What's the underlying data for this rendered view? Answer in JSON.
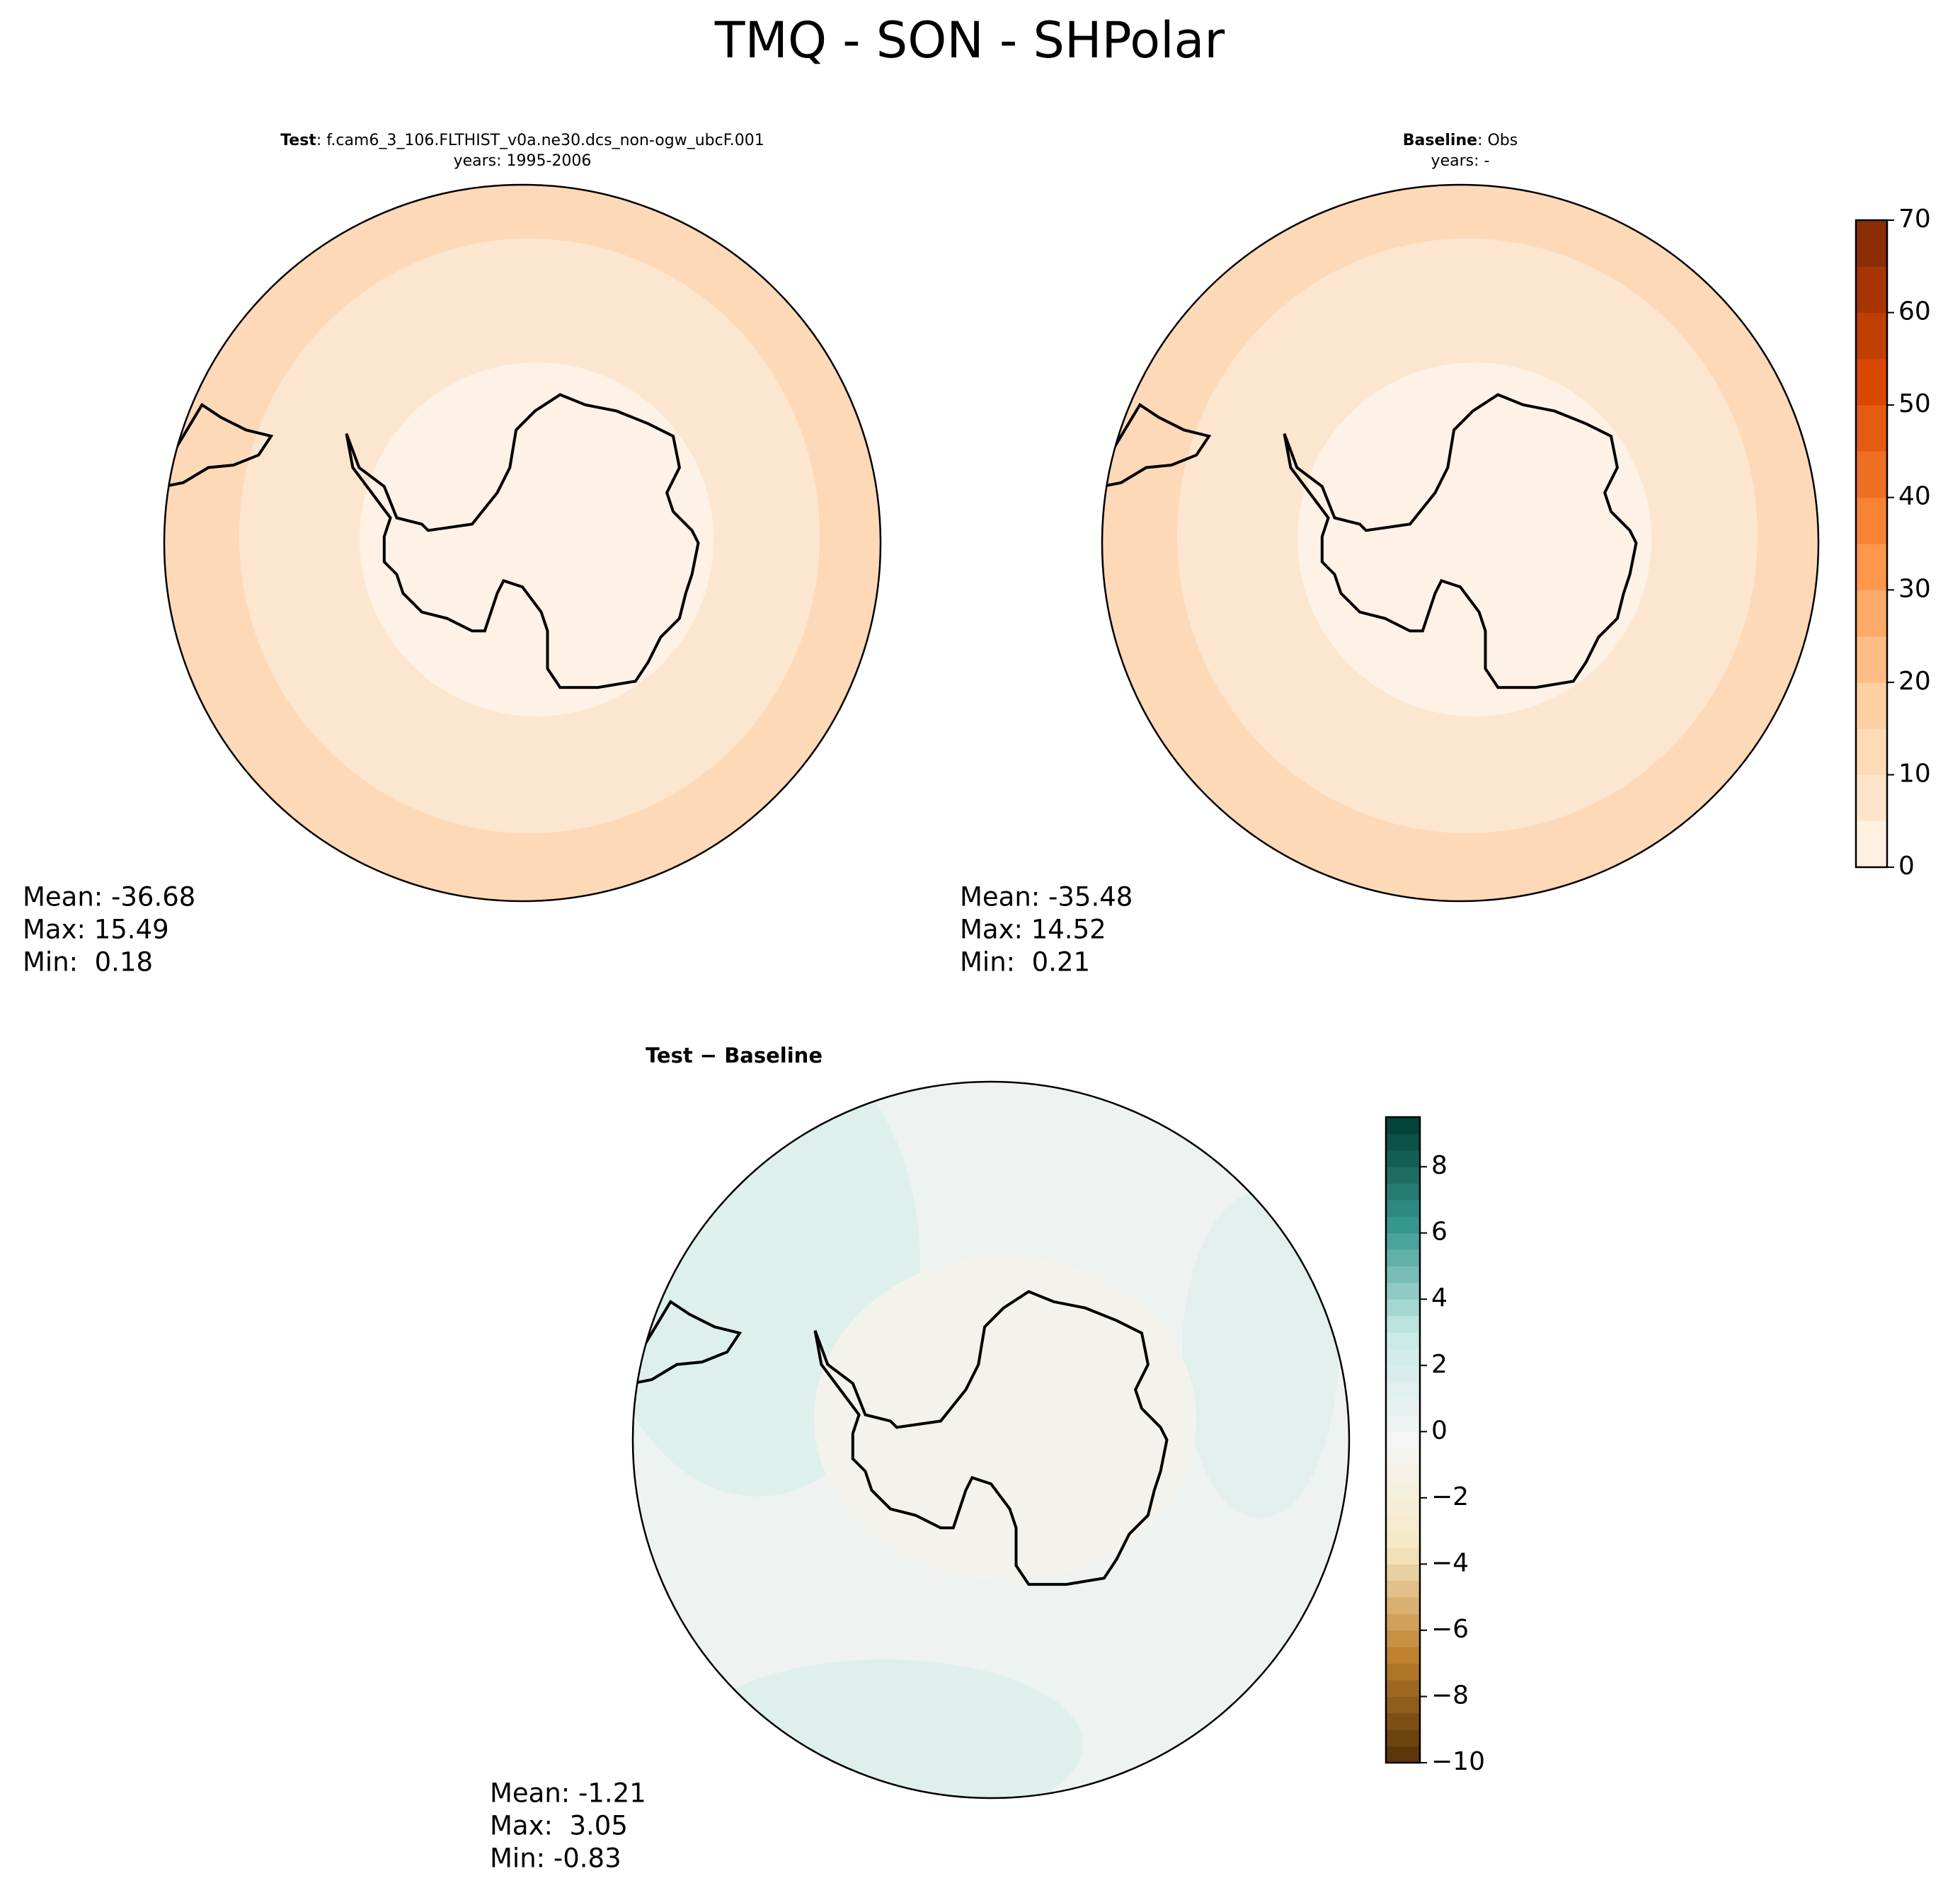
{
  "title": "TMQ - SON - SHPolar",
  "panels": [
    {
      "title_label": "Test",
      "title_text": ": f.cam6_3_106.FLTHIST_v0a.ne30.dcs_non-ogw_ubcF.001",
      "subtitle": "years: 1995-2006",
      "stats": [
        "Mean: -36.68",
        "Max: 15.49",
        "Min:  0.18"
      ]
    },
    {
      "title_label": "Baseline",
      "title_text": ": Obs",
      "subtitle": "years: -",
      "stats": [
        "Mean: -35.48",
        "Max: 14.52",
        "Min:  0.21"
      ]
    },
    {
      "title_label": "Test − Baseline",
      "stats": [
        "Mean: -1.21",
        "Max:  3.05",
        "Min: -0.83"
      ]
    }
  ],
  "colorbars": [
    {
      "ylim": [
        0,
        70
      ],
      "yticks": [
        0,
        10,
        20,
        30,
        40,
        50,
        60,
        70
      ]
    },
    {
      "ylim": [
        -10,
        9.5
      ],
      "yticks": [
        {
          "value": -10,
          "label": "−10"
        },
        {
          "value": -8,
          "label": "−8"
        },
        {
          "value": -6,
          "label": "−6"
        },
        {
          "value": -4,
          "label": "−4"
        },
        {
          "value": -2,
          "label": "−2"
        },
        0,
        2,
        4,
        6,
        8
      ]
    }
  ]
}
